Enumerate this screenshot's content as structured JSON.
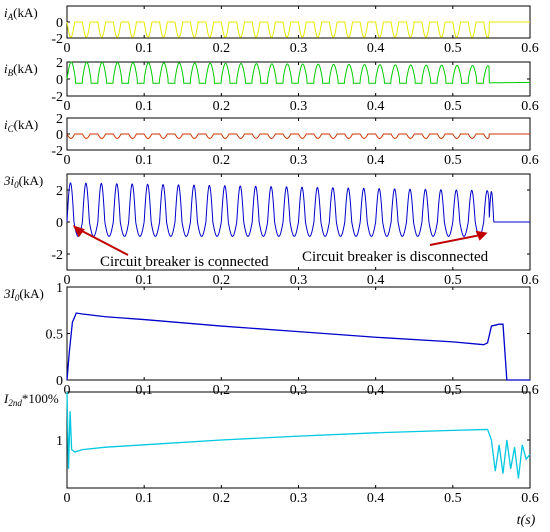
{
  "chart_data": [
    {
      "type": "line",
      "ylabel_main": "i",
      "ylabel_sub": "A",
      "ylabel_unit": "(kA)",
      "color": "#e8e800",
      "xlim": [
        0,
        0.6
      ],
      "ylim": [
        -2,
        2
      ],
      "xticks": [
        "0",
        "0.1",
        "0.2",
        "0.3",
        "0.4",
        "0.5",
        "0.6"
      ],
      "yticks": [
        "0",
        "-2"
      ],
      "series": [
        {
          "x": [
            0,
            0.01,
            0.02,
            0.03,
            0.04,
            0.05,
            0.06,
            0.1,
            0.2,
            0.3,
            0.4,
            0.5,
            0.54,
            0.545,
            0.55,
            0.6
          ],
          "values": [
            0,
            -1.9,
            0,
            -1.9,
            0,
            -1.9,
            0,
            -1.9,
            -1.9,
            -1.9,
            -1.9,
            -1.9,
            -1.8,
            0,
            0,
            0
          ]
        }
      ]
    },
    {
      "type": "line",
      "ylabel_main": "i",
      "ylabel_sub": "B",
      "ylabel_unit": "(kA)",
      "color": "#00cc00",
      "xlim": [
        0,
        0.6
      ],
      "ylim": [
        -2,
        2
      ],
      "xticks": [
        "0",
        "0.1",
        "0.2",
        "0.3",
        "0.4",
        "0.5",
        "0.6"
      ],
      "yticks": [
        "2",
        "0",
        "-2"
      ],
      "series": [
        {
          "x": [
            0,
            0.005,
            0.01,
            0.02,
            0.1,
            0.2,
            0.3,
            0.4,
            0.5,
            0.545,
            0.55,
            0.6
          ],
          "values": [
            0,
            2,
            -0.5,
            2,
            1.9,
            1.8,
            1.7,
            1.7,
            1.6,
            1.4,
            -0.5,
            -0.4
          ]
        }
      ]
    },
    {
      "type": "line",
      "ylabel_main": "i",
      "ylabel_sub": "C",
      "ylabel_unit": "(kA)",
      "color": "#cc3300",
      "xlim": [
        0,
        0.6
      ],
      "ylim": [
        -2,
        2
      ],
      "xticks": [
        "0",
        "0.1",
        "0.2",
        "0.3",
        "0.4",
        "0.5",
        "0.6"
      ],
      "yticks": [
        "2",
        "0",
        "-2"
      ],
      "series": [
        {
          "x": [
            0,
            0.01,
            0.1,
            0.2,
            0.3,
            0.4,
            0.5,
            0.55,
            0.6
          ],
          "values": [
            0,
            -0.5,
            -0.5,
            -0.5,
            -0.5,
            -0.5,
            -0.5,
            0,
            0
          ]
        }
      ]
    },
    {
      "type": "line",
      "ylabel_main": "3i",
      "ylabel_sub": "0",
      "ylabel_unit": "(kA)",
      "color": "#0000cc",
      "xlim": [
        0,
        0.6
      ],
      "ylim": [
        -3,
        3
      ],
      "xticks": [
        "0",
        "0.1",
        "0.2",
        "0.3",
        "0.4",
        "0.5",
        "0.6"
      ],
      "yticks": [
        "2",
        "0",
        "-2"
      ],
      "series": [
        {
          "x": [
            0,
            0.01,
            0.1,
            0.2,
            0.3,
            0.4,
            0.5,
            0.545,
            0.55,
            0.6
          ],
          "values": [
            0,
            2.4,
            2.3,
            2.2,
            2.1,
            2.0,
            1.9,
            1.9,
            0,
            0
          ]
        }
      ],
      "annotations": [
        {
          "text": "Circuit breaker is connected",
          "x": 0.005,
          "y": -0.2
        },
        {
          "text": "Circuit breaker is disconnected",
          "x": 0.545,
          "y": -0.3
        }
      ]
    },
    {
      "type": "line",
      "ylabel_main": "3I",
      "ylabel_sub": "0",
      "ylabel_unit": "(kA)",
      "color": "#0000cc",
      "xlim": [
        0,
        0.6
      ],
      "ylim": [
        0,
        1
      ],
      "xticks": [
        "0",
        "0.1",
        "0.2",
        "0.3",
        "0.4",
        "0.5",
        "0.6"
      ],
      "yticks": [
        "1",
        "0.5",
        "0"
      ],
      "series": [
        {
          "x": [
            0,
            0.003,
            0.007,
            0.012,
            0.02,
            0.05,
            0.1,
            0.2,
            0.3,
            0.4,
            0.5,
            0.54,
            0.545,
            0.55,
            0.56,
            0.565,
            0.57,
            0.6
          ],
          "values": [
            0,
            0.3,
            0.62,
            0.72,
            0.71,
            0.68,
            0.65,
            0.58,
            0.52,
            0.46,
            0.41,
            0.38,
            0.4,
            0.58,
            0.6,
            0.6,
            0.0,
            0.0
          ]
        }
      ]
    },
    {
      "type": "line",
      "ylabel_main": "I",
      "ylabel_sub": "2nd",
      "ylabel_unit": "*100%",
      "color": "#00c8e0",
      "xlim": [
        0,
        0.6
      ],
      "ylim": [
        0,
        2
      ],
      "xticks": [
        "0",
        "0.1",
        "0.2",
        "0.3",
        "0.4",
        "0.5",
        "0.6"
      ],
      "yticks": [
        "1"
      ],
      "xlabel": "t(s)",
      "series": [
        {
          "x": [
            0,
            0.002,
            0.004,
            0.006,
            0.01,
            0.02,
            0.05,
            0.1,
            0.2,
            0.3,
            0.4,
            0.5,
            0.545,
            0.55,
            0.555,
            0.56,
            0.565,
            0.57,
            0.575,
            0.58,
            0.585,
            0.59,
            0.595,
            0.6
          ],
          "values": [
            2.0,
            0.4,
            1.6,
            0.8,
            0.75,
            0.8,
            0.85,
            0.9,
            1.0,
            1.08,
            1.15,
            1.2,
            1.22,
            1.0,
            0.35,
            0.9,
            0.3,
            1.0,
            0.4,
            0.85,
            0.2,
            0.9,
            0.6,
            0.7
          ]
        }
      ]
    }
  ]
}
